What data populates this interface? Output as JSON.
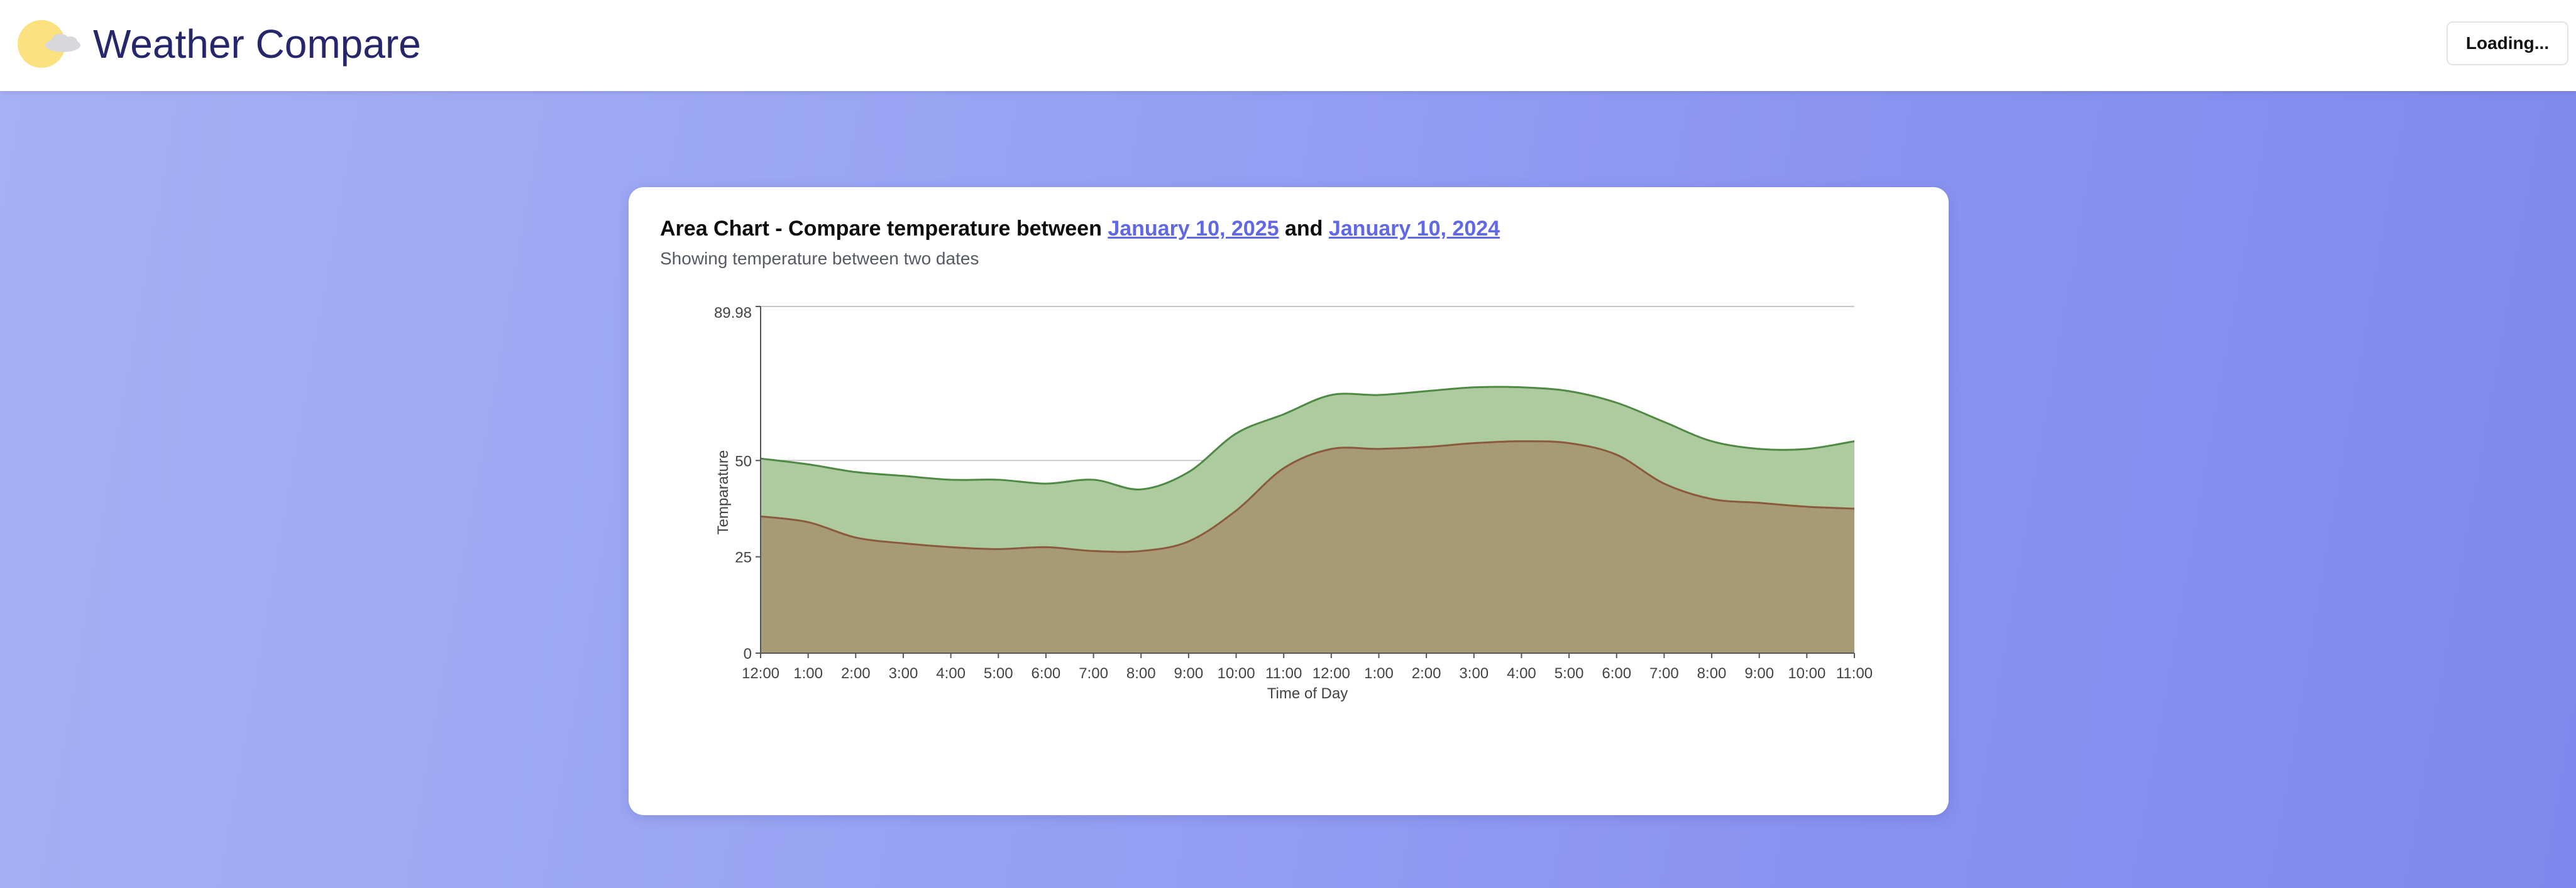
{
  "app": {
    "title": "Weather Compare",
    "status_button": "Loading..."
  },
  "card": {
    "title_prefix": "Area Chart - Compare temperature between ",
    "date_a": "January 10, 2025",
    "title_join": " and ",
    "date_b": "January 10, 2024",
    "subtitle": "Showing temperature between two dates"
  },
  "colors": {
    "series_a_fill": "#aecb9f",
    "series_a_stroke": "#4f8a45",
    "series_b_fill": "#a69873",
    "series_b_stroke": "#8a5a3a",
    "link": "#6068e6",
    "title_text": "#25266b"
  },
  "chart_data": {
    "type": "area",
    "xlabel": "Time of Day",
    "ylabel": "Temparature",
    "ylim": [
      0,
      89.98
    ],
    "yticks": [
      0,
      25,
      50,
      89.98
    ],
    "grid": "horizontal",
    "categories": [
      "12:00",
      "1:00",
      "2:00",
      "3:00",
      "4:00",
      "5:00",
      "6:00",
      "7:00",
      "8:00",
      "9:00",
      "10:00",
      "11:00",
      "12:00",
      "1:00",
      "2:00",
      "3:00",
      "4:00",
      "5:00",
      "6:00",
      "7:00",
      "8:00",
      "9:00",
      "10:00",
      "11:00"
    ],
    "series": [
      {
        "values": [
          50.5,
          49,
          47,
          46,
          45,
          45,
          44,
          45,
          42.5,
          47,
          57,
          62,
          67,
          67,
          68,
          69,
          69,
          68,
          65,
          60,
          55,
          53,
          53,
          55
        ]
      },
      {
        "values": [
          35.5,
          34,
          30,
          28.5,
          27.5,
          27,
          27.5,
          26.5,
          26.5,
          29,
          37,
          48,
          53,
          53,
          53.5,
          54.5,
          55,
          54.5,
          51.5,
          44,
          40,
          39,
          38,
          37.5
        ]
      }
    ]
  }
}
